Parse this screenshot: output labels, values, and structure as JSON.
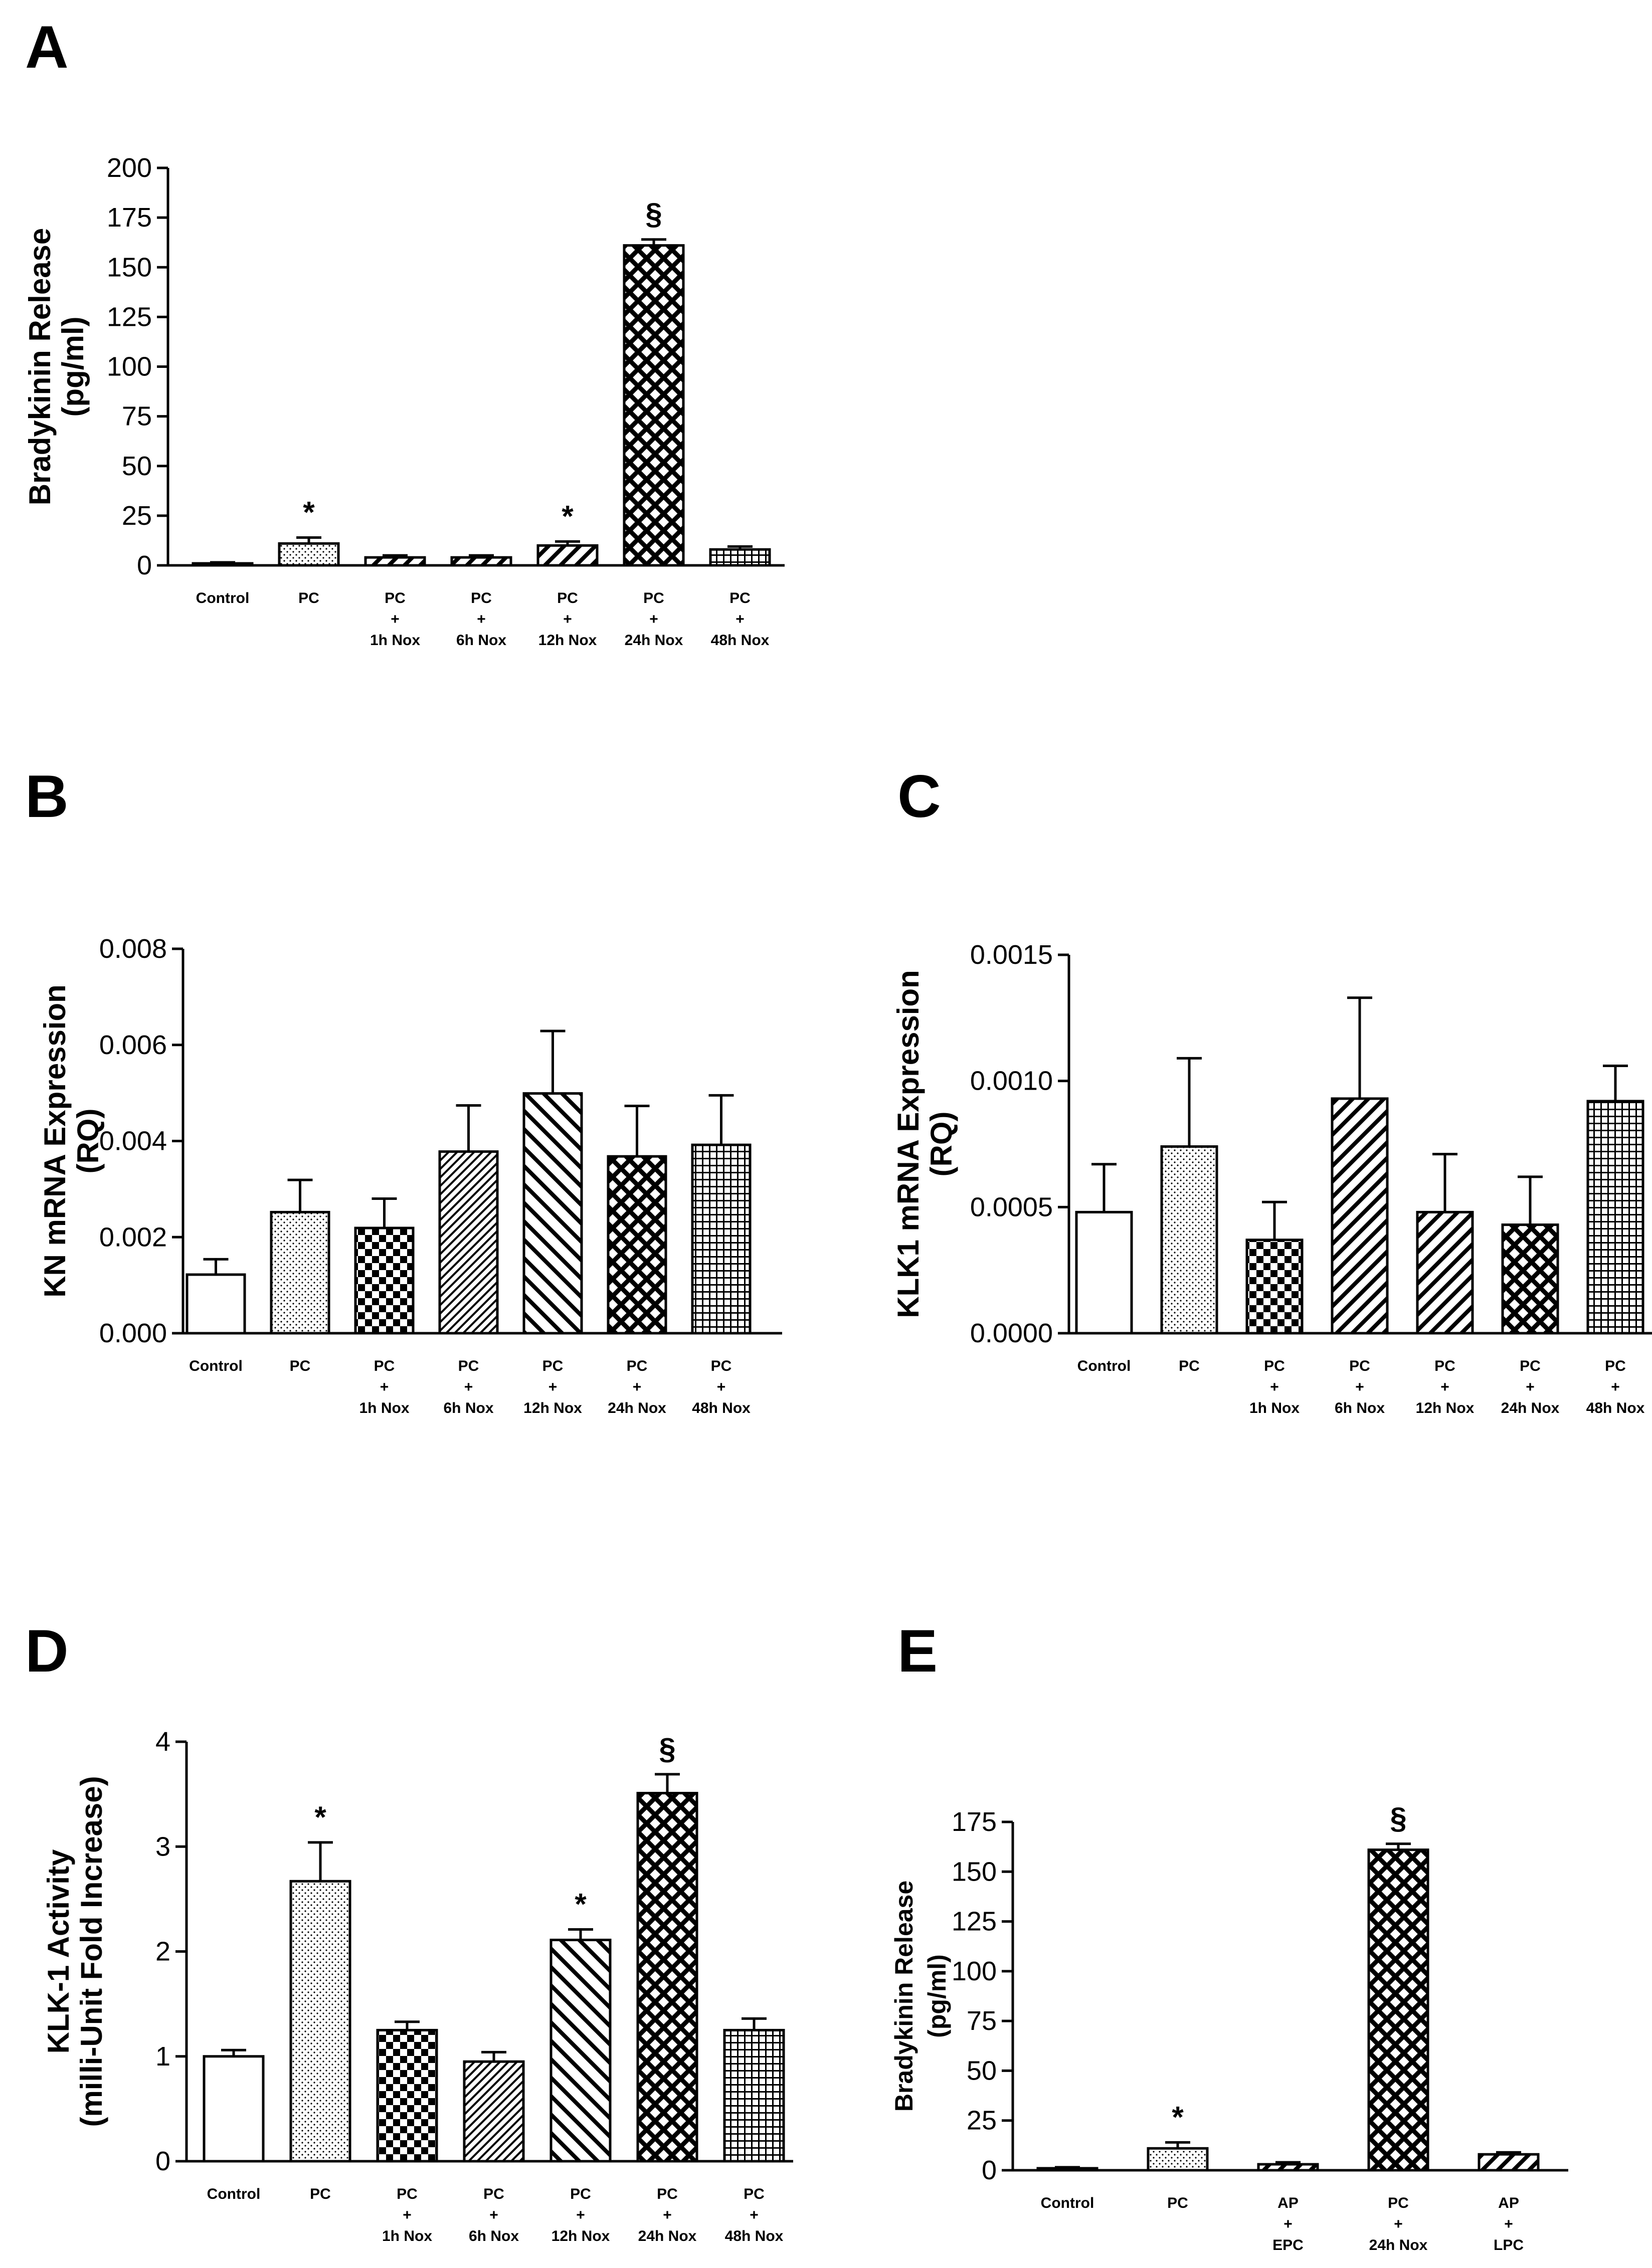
{
  "chart_data": [
    {
      "panel": "A",
      "type": "bar",
      "ylabel": [
        "Bradykinin Release",
        "(pg/ml)"
      ],
      "ylim": [
        0,
        200
      ],
      "yticks": [
        0,
        25,
        50,
        75,
        100,
        125,
        150,
        175,
        200
      ],
      "categories": [
        [
          "Control"
        ],
        [
          "PC"
        ],
        [
          "PC",
          "+",
          "1h Nox"
        ],
        [
          "PC",
          "+",
          "6h Nox"
        ],
        [
          "PC",
          "+",
          "12h Nox"
        ],
        [
          "PC",
          "+",
          "24h Nox"
        ],
        [
          "PC",
          "+",
          "48h Nox"
        ]
      ],
      "values": [
        1,
        11,
        4,
        4,
        10,
        161,
        8
      ],
      "errors": [
        0.5,
        3,
        1,
        1,
        2,
        3,
        1.5
      ],
      "patterns": [
        "white",
        "dots",
        "diag",
        "diag",
        "diag",
        "crosshatch",
        "grid"
      ],
      "annotations": [
        "",
        "*",
        "",
        "",
        "*",
        "§",
        ""
      ]
    },
    {
      "panel": "B",
      "type": "bar",
      "ylabel": [
        "KN mRNA Expression",
        "(RQ)"
      ],
      "ylim": [
        0,
        0.008
      ],
      "yticks": [
        0.0,
        0.002,
        0.004,
        0.006,
        0.008
      ],
      "ytick_labels": [
        "0.000",
        "0.002",
        "0.004",
        "0.006",
        "0.008"
      ],
      "categories": [
        [
          "Control"
        ],
        [
          "PC"
        ],
        [
          "PC",
          "+",
          "1h Nox"
        ],
        [
          "PC",
          "+",
          "6h Nox"
        ],
        [
          "PC",
          "+",
          "12h Nox"
        ],
        [
          "PC",
          "+",
          "24h Nox"
        ],
        [
          "PC",
          "+",
          "48h Nox"
        ]
      ],
      "values": [
        0.00122,
        0.00252,
        0.00219,
        0.00378,
        0.00499,
        0.00368,
        0.00392
      ],
      "errors": [
        0.00032,
        0.00067,
        0.00061,
        0.00096,
        0.0013,
        0.00105,
        0.00103
      ],
      "patterns": [
        "white",
        "dots",
        "checker",
        "diagfine",
        "diagback",
        "crosshatch",
        "grid"
      ],
      "annotations": [
        "",
        "",
        "",
        "",
        "",
        "",
        ""
      ]
    },
    {
      "panel": "C",
      "type": "bar",
      "ylabel": [
        "KLK1 mRNA Expression",
        "(RQ)"
      ],
      "ylim": [
        0,
        0.0015
      ],
      "yticks": [
        0.0,
        0.0005,
        0.001,
        0.0015
      ],
      "ytick_labels": [
        "0.0000",
        "0.0005",
        "0.0010",
        "0.0015"
      ],
      "categories": [
        [
          "Control"
        ],
        [
          "PC"
        ],
        [
          "PC",
          "+",
          "1h Nox"
        ],
        [
          "PC",
          "+",
          "6h Nox"
        ],
        [
          "PC",
          "+",
          "12h Nox"
        ],
        [
          "PC",
          "+",
          "24h Nox"
        ],
        [
          "PC",
          "+",
          "48h Nox"
        ]
      ],
      "values": [
        0.00048,
        0.00074,
        0.00037,
        0.00093,
        0.00048,
        0.00043,
        0.00092
      ],
      "errors": [
        0.00019,
        0.00035,
        0.00015,
        0.0004,
        0.00023,
        0.00019,
        0.00014
      ],
      "patterns": [
        "white",
        "dots",
        "checker",
        "diag",
        "diag",
        "crosshatch",
        "grid"
      ],
      "annotations": [
        "",
        "",
        "",
        "",
        "",
        "",
        ""
      ]
    },
    {
      "panel": "D",
      "type": "bar",
      "ylabel": [
        "KLK-1 Activity",
        "(milli-Unit Fold Increase)"
      ],
      "ylim": [
        0,
        4
      ],
      "yticks": [
        0,
        1,
        2,
        3,
        4
      ],
      "categories": [
        [
          "Control"
        ],
        [
          "PC"
        ],
        [
          "PC",
          "+",
          "1h Nox"
        ],
        [
          "PC",
          "+",
          "6h Nox"
        ],
        [
          "PC",
          "+",
          "12h Nox"
        ],
        [
          "PC",
          "+",
          "24h Nox"
        ],
        [
          "PC",
          "+",
          "48h Nox"
        ]
      ],
      "values": [
        1.0,
        2.67,
        1.25,
        0.95,
        2.11,
        3.51,
        1.25
      ],
      "errors": [
        0.06,
        0.37,
        0.08,
        0.09,
        0.1,
        0.18,
        0.11
      ],
      "patterns": [
        "white",
        "dots",
        "checker",
        "diagfine",
        "diagback",
        "crosshatch",
        "grid"
      ],
      "annotations": [
        "",
        "*",
        "",
        "",
        "*",
        "§",
        ""
      ]
    },
    {
      "panel": "E",
      "type": "bar",
      "ylabel": [
        "Bradykinin Release",
        "(pg/ml)"
      ],
      "ylim": [
        0,
        175
      ],
      "yticks": [
        0,
        25,
        50,
        75,
        100,
        125,
        150,
        175
      ],
      "categories": [
        [
          "Control"
        ],
        [
          "PC"
        ],
        [
          "AP",
          "+",
          "EPC"
        ],
        [
          "PC",
          "+",
          "24h Nox"
        ],
        [
          "AP",
          "+",
          "LPC"
        ]
      ],
      "values": [
        1,
        11,
        3,
        161,
        8
      ],
      "errors": [
        0.5,
        3,
        1,
        3,
        1
      ],
      "patterns": [
        "white",
        "dots",
        "diag",
        "crosshatch",
        "diag"
      ],
      "annotations": [
        "",
        "*",
        "",
        "§",
        ""
      ]
    }
  ]
}
